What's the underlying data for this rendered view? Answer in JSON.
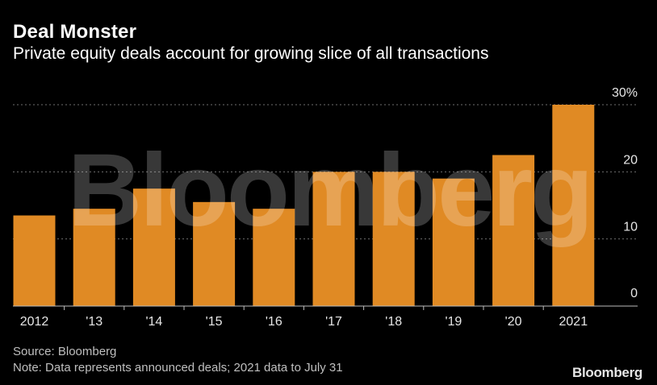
{
  "chart_data": {
    "type": "bar",
    "title": "Deal Monster",
    "subtitle": "Private equity deals account for growing slice of all transactions",
    "categories": [
      "2012",
      "'13",
      "'14",
      "'15",
      "'16",
      "'17",
      "'18",
      "'19",
      "'20",
      "2021"
    ],
    "values": [
      13.5,
      14.5,
      17.5,
      15.5,
      14.5,
      20,
      20,
      19,
      22.5,
      30
    ],
    "ylim": [
      0,
      30
    ],
    "yticks": [
      0,
      10,
      20,
      30
    ],
    "ytick_labels": [
      "0",
      "10",
      "20",
      "30%"
    ],
    "xlabel": "",
    "ylabel": "",
    "grid": true,
    "legend": "none"
  },
  "colors": {
    "background": "#000000",
    "bar": "#e08a24",
    "grid": "#6e6e6e",
    "axis": "#bdbdbd",
    "watermark": "#ffffff"
  },
  "watermark": "Bloomberg",
  "footer": {
    "source": "Source: Bloomberg",
    "note": "Note: Data represents announced deals; 2021 data to July 31",
    "brand": "Bloomberg"
  }
}
